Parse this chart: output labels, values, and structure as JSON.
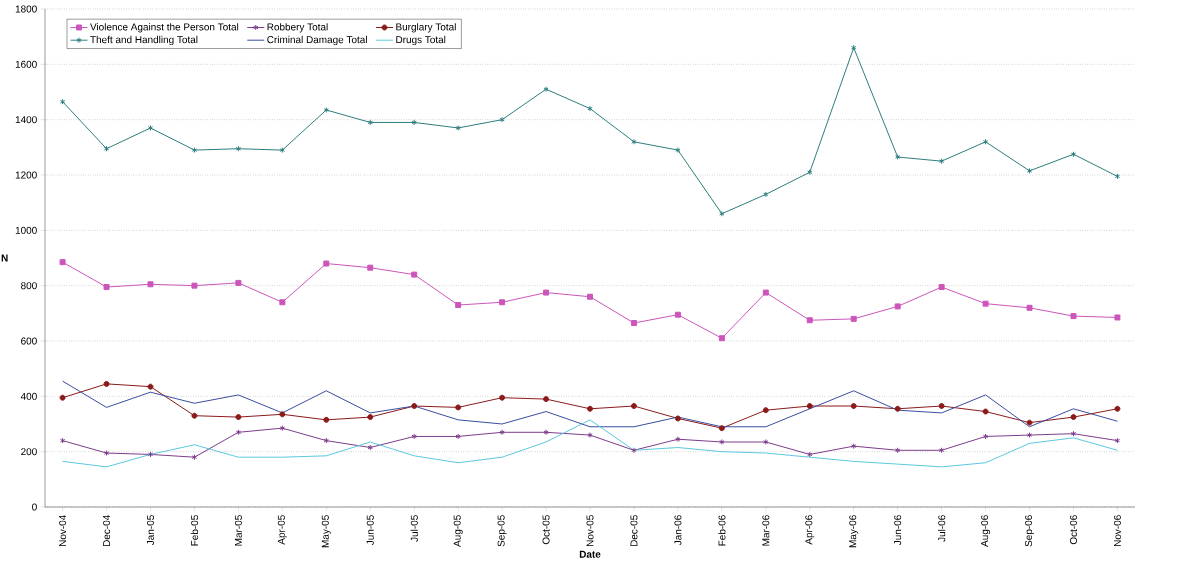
{
  "chart_data": {
    "type": "line",
    "xlabel": "Date",
    "ylabel": "N",
    "categories": [
      "Nov-04",
      "Dec-04",
      "Jan-05",
      "Feb-05",
      "Mar-05",
      "Apr-05",
      "May-05",
      "Jun-05",
      "Jul-05",
      "Aug-05",
      "Sep-05",
      "Oct-05",
      "Nov-05",
      "Dec-05",
      "Jan-06",
      "Feb-06",
      "Mar-06",
      "Apr-06",
      "May-06",
      "Jun-06",
      "Jul-06",
      "Aug-06",
      "Sep-06",
      "Oct-06",
      "Nov-06"
    ],
    "series": [
      {
        "name": "Violence Against the Person Total",
        "color": "#cc55bb",
        "marker": "square",
        "values": [
          885,
          795,
          805,
          800,
          810,
          740,
          880,
          865,
          840,
          730,
          740,
          775,
          760,
          665,
          695,
          610,
          775,
          675,
          680,
          725,
          795,
          735,
          720,
          690,
          685
        ]
      },
      {
        "name": "Robbery Total",
        "color": "#7b3c8c",
        "marker": "cross",
        "values": [
          240,
          195,
          190,
          180,
          270,
          285,
          240,
          215,
          255,
          255,
          270,
          270,
          260,
          205,
          245,
          235,
          235,
          190,
          220,
          205,
          205,
          255,
          260,
          265,
          240
        ]
      },
      {
        "name": "Burglary Total",
        "color": "#8b1a1a",
        "marker": "circle",
        "values": [
          395,
          445,
          435,
          330,
          325,
          335,
          315,
          325,
          365,
          360,
          395,
          390,
          355,
          365,
          320,
          285,
          350,
          365,
          365,
          355,
          365,
          345,
          305,
          325,
          355
        ]
      },
      {
        "name": "Theft and Handling Total",
        "color": "#2e7d7d",
        "marker": "cross",
        "values": [
          1465,
          1295,
          1370,
          1290,
          1295,
          1290,
          1435,
          1390,
          1390,
          1370,
          1400,
          1510,
          1440,
          1320,
          1290,
          1060,
          1130,
          1210,
          1660,
          1265,
          1250,
          1320,
          1215,
          1275,
          1195
        ]
      },
      {
        "name": "Criminal Damage Total",
        "color": "#3b4ca0",
        "marker": "none",
        "values": [
          455,
          360,
          415,
          375,
          405,
          340,
          420,
          340,
          365,
          315,
          300,
          345,
          290,
          290,
          325,
          290,
          290,
          355,
          420,
          350,
          340,
          405,
          290,
          355,
          310
        ]
      },
      {
        "name": "Drugs Total",
        "color": "#5bc8e0",
        "marker": "none",
        "values": [
          165,
          145,
          190,
          225,
          180,
          180,
          185,
          235,
          185,
          160,
          180,
          235,
          315,
          205,
          215,
          200,
          195,
          180,
          165,
          155,
          145,
          160,
          230,
          250,
          205
        ]
      }
    ],
    "ylim": [
      0,
      1800
    ],
    "yticks": [
      0,
      200,
      400,
      600,
      800,
      1000,
      1200,
      1400,
      1600,
      1800
    ],
    "grid": "y",
    "legend": "top left"
  }
}
